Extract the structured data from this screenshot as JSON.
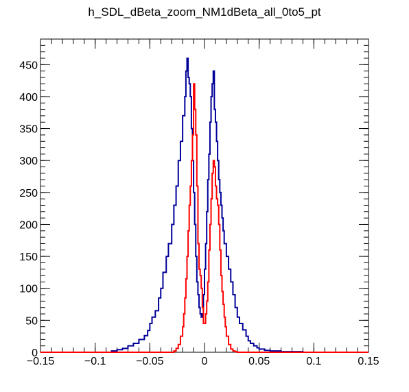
{
  "chart_data": {
    "type": "histogram",
    "title": "h_SDL_dBeta_zoom_NM1dBeta_all_0to5_pt",
    "xlim": [
      -0.15,
      0.15
    ],
    "ylim": [
      0,
      490
    ],
    "xticks": [
      -0.15,
      -0.1,
      -0.05,
      0,
      0.05,
      0.1,
      0.15
    ],
    "xtick_labels": [
      "−0.15",
      "−0.1",
      "−0.05",
      "0",
      "0.05",
      "0.1",
      "0.15"
    ],
    "yticks": [
      0,
      50,
      100,
      150,
      200,
      250,
      300,
      350,
      400,
      450
    ],
    "ytick_labels": [
      "0",
      "50",
      "100",
      "150",
      "200",
      "250",
      "300",
      "350",
      "400",
      "450"
    ],
    "grid": false,
    "legend": "none",
    "series": [
      {
        "color": "#000099",
        "x": [
          -0.085,
          -0.08,
          -0.075,
          -0.07,
          -0.065,
          -0.06,
          -0.055,
          -0.052,
          -0.05,
          -0.048,
          -0.045,
          -0.042,
          -0.04,
          -0.038,
          -0.035,
          -0.033,
          -0.03,
          -0.028,
          -0.026,
          -0.024,
          -0.022,
          -0.02,
          -0.018,
          -0.017,
          -0.016,
          -0.015,
          -0.014,
          -0.013,
          -0.012,
          -0.011,
          -0.01,
          -0.009,
          -0.008,
          -0.007,
          -0.006,
          -0.005,
          -0.004,
          -0.003,
          -0.002,
          -0.001,
          0,
          0.001,
          0.002,
          0.003,
          0.004,
          0.005,
          0.006,
          0.007,
          0.008,
          0.009,
          0.01,
          0.011,
          0.012,
          0.013,
          0.014,
          0.015,
          0.016,
          0.017,
          0.018,
          0.02,
          0.022,
          0.024,
          0.026,
          0.028,
          0.03,
          0.032,
          0.035,
          0.038,
          0.04,
          0.042,
          0.045,
          0.048,
          0.05,
          0.055,
          0.06,
          0.065,
          0.07,
          0.08,
          0.09
        ],
        "y": [
          2,
          4,
          6,
          10,
          14,
          20,
          26,
          34,
          45,
          55,
          65,
          85,
          100,
          125,
          150,
          170,
          200,
          230,
          260,
          300,
          330,
          370,
          400,
          440,
          460,
          430,
          420,
          400,
          350,
          300,
          250,
          200,
          150,
          110,
          90,
          70,
          60,
          55,
          60,
          90,
          130,
          170,
          220,
          270,
          310,
          360,
          400,
          420,
          440,
          380,
          360,
          330,
          300,
          270,
          250,
          230,
          210,
          190,
          170,
          150,
          130,
          110,
          90,
          70,
          55,
          45,
          35,
          25,
          18,
          14,
          10,
          7,
          5,
          3,
          2,
          2,
          1,
          1,
          0
        ]
      },
      {
        "color": "#ff0000",
        "x": [
          -0.03,
          -0.028,
          -0.026,
          -0.024,
          -0.022,
          -0.02,
          -0.019,
          -0.018,
          -0.017,
          -0.016,
          -0.015,
          -0.014,
          -0.013,
          -0.012,
          -0.011,
          -0.01,
          -0.009,
          -0.008,
          -0.007,
          -0.006,
          -0.005,
          -0.004,
          -0.003,
          -0.002,
          -0.001,
          0,
          0.001,
          0.002,
          0.003,
          0.004,
          0.005,
          0.006,
          0.007,
          0.008,
          0.009,
          0.01,
          0.011,
          0.012,
          0.013,
          0.014,
          0.015,
          0.016,
          0.017,
          0.018,
          0.019,
          0.02,
          0.022,
          0.024,
          0.026,
          0.028,
          0.03
        ],
        "y": [
          0,
          2,
          6,
          12,
          25,
          40,
          60,
          85,
          115,
          150,
          190,
          230,
          260,
          300,
          340,
          420,
          380,
          340,
          260,
          170,
          130,
          120,
          100,
          70,
          45,
          45,
          60,
          80,
          110,
          160,
          200,
          240,
          280,
          300,
          290,
          260,
          240,
          230,
          200,
          160,
          120,
          95,
          75,
          55,
          40,
          25,
          12,
          5,
          2,
          1,
          0
        ]
      }
    ]
  }
}
